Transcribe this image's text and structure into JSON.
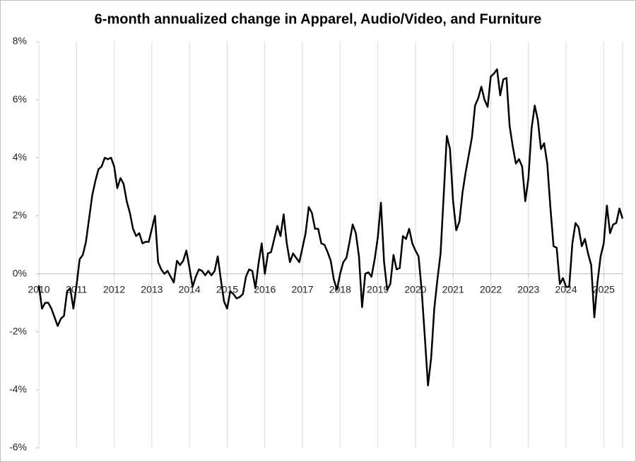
{
  "chart_data": {
    "type": "line",
    "title": "6-month annualized change in Apparel, Audio/Video, and Furniture",
    "color": "#000000",
    "grid": true,
    "xlim": [
      2010,
      2025.5
    ],
    "xticks": [
      2010,
      2011,
      2012,
      2013,
      2014,
      2015,
      2016,
      2017,
      2018,
      2019,
      2020,
      2021,
      2022,
      2023,
      2024,
      2025
    ],
    "ylim": [
      -6,
      8
    ],
    "yticks": [
      {
        "value": -6,
        "label": "-6%"
      },
      {
        "value": -4,
        "label": "-4%"
      },
      {
        "value": -2,
        "label": "-2%"
      },
      {
        "value": 0,
        "label": "0%"
      },
      {
        "value": 2,
        "label": "2%"
      },
      {
        "value": 4,
        "label": "4%"
      },
      {
        "value": 6,
        "label": "6%"
      },
      {
        "value": 8,
        "label": "8%"
      }
    ],
    "x": [
      2010,
      2010.083,
      2010.167,
      2010.25,
      2010.333,
      2010.417,
      2010.5,
      2010.583,
      2010.667,
      2010.75,
      2010.833,
      2010.917,
      2011,
      2011.083,
      2011.167,
      2011.25,
      2011.333,
      2011.417,
      2011.5,
      2011.583,
      2011.667,
      2011.75,
      2011.833,
      2011.917,
      2012,
      2012.083,
      2012.167,
      2012.25,
      2012.333,
      2012.417,
      2012.5,
      2012.583,
      2012.667,
      2012.75,
      2012.833,
      2012.917,
      2013,
      2013.083,
      2013.167,
      2013.25,
      2013.333,
      2013.417,
      2013.5,
      2013.583,
      2013.667,
      2013.75,
      2013.833,
      2013.917,
      2014,
      2014.083,
      2014.167,
      2014.25,
      2014.333,
      2014.417,
      2014.5,
      2014.583,
      2014.667,
      2014.75,
      2014.833,
      2014.917,
      2015,
      2015.083,
      2015.167,
      2015.25,
      2015.333,
      2015.417,
      2015.5,
      2015.583,
      2015.667,
      2015.75,
      2015.833,
      2015.917,
      2016,
      2016.083,
      2016.167,
      2016.25,
      2016.333,
      2016.417,
      2016.5,
      2016.583,
      2016.667,
      2016.75,
      2016.833,
      2016.917,
      2017,
      2017.083,
      2017.167,
      2017.25,
      2017.333,
      2017.417,
      2017.5,
      2017.583,
      2017.667,
      2017.75,
      2017.833,
      2017.917,
      2018,
      2018.083,
      2018.167,
      2018.25,
      2018.333,
      2018.417,
      2018.5,
      2018.583,
      2018.667,
      2018.75,
      2018.833,
      2018.917,
      2019,
      2019.083,
      2019.167,
      2019.25,
      2019.333,
      2019.417,
      2019.5,
      2019.583,
      2019.667,
      2019.75,
      2019.833,
      2019.917,
      2020,
      2020.083,
      2020.167,
      2020.25,
      2020.333,
      2020.417,
      2020.5,
      2020.583,
      2020.667,
      2020.75,
      2020.833,
      2020.917,
      2021,
      2021.083,
      2021.167,
      2021.25,
      2021.333,
      2021.417,
      2021.5,
      2021.583,
      2021.667,
      2021.75,
      2021.833,
      2021.917,
      2022,
      2022.083,
      2022.167,
      2022.25,
      2022.333,
      2022.417,
      2022.5,
      2022.583,
      2022.667,
      2022.75,
      2022.833,
      2022.917,
      2023,
      2023.083,
      2023.167,
      2023.25,
      2023.333,
      2023.417,
      2023.5,
      2023.583,
      2023.667,
      2023.75,
      2023.833,
      2023.917,
      2024,
      2024.083,
      2024.167,
      2024.25,
      2024.333,
      2024.417,
      2024.5,
      2024.583,
      2024.667,
      2024.75,
      2024.833,
      2024.917,
      2025,
      2025.083,
      2025.167,
      2025.25,
      2025.333,
      2025.417,
      2025.5
    ],
    "values": [
      -0.4,
      -1.2,
      -1.0,
      -1.0,
      -1.2,
      -1.5,
      -1.8,
      -1.55,
      -1.45,
      -0.6,
      -0.5,
      -1.2,
      -0.4,
      0.5,
      0.65,
      1.1,
      1.9,
      2.7,
      3.2,
      3.6,
      3.7,
      4.0,
      3.95,
      4.0,
      3.7,
      2.95,
      3.3,
      3.1,
      2.5,
      2.1,
      1.55,
      1.3,
      1.4,
      1.05,
      1.1,
      1.1,
      1.55,
      2.0,
      0.4,
      0.15,
      0.0,
      0.1,
      -0.1,
      -0.3,
      0.45,
      0.3,
      0.45,
      0.8,
      0.2,
      -0.45,
      -0.1,
      0.15,
      0.1,
      -0.05,
      0.1,
      -0.05,
      0.1,
      0.6,
      -0.2,
      -0.95,
      -1.2,
      -0.6,
      -0.7,
      -0.85,
      -0.8,
      -0.7,
      -0.1,
      0.15,
      0.1,
      -0.5,
      0.35,
      1.05,
      0.0,
      0.7,
      0.75,
      1.2,
      1.65,
      1.3,
      2.05,
      1.05,
      0.4,
      0.7,
      0.55,
      0.4,
      0.9,
      1.4,
      2.3,
      2.1,
      1.55,
      1.55,
      1.05,
      1.0,
      0.75,
      0.45,
      -0.2,
      -0.55,
      0.0,
      0.4,
      0.55,
      1.1,
      1.7,
      1.4,
      0.6,
      -1.15,
      0.0,
      0.05,
      -0.1,
      0.5,
      1.25,
      2.45,
      0.4,
      -0.55,
      -0.35,
      0.65,
      0.15,
      0.2,
      1.3,
      1.2,
      1.55,
      1.05,
      0.8,
      0.6,
      -0.6,
      -2.2,
      -3.85,
      -2.9,
      -1.2,
      -0.2,
      0.7,
      2.7,
      4.75,
      4.3,
      2.5,
      1.5,
      1.8,
      2.8,
      3.5,
      4.1,
      4.7,
      5.8,
      6.05,
      6.45,
      6.0,
      5.75,
      6.8,
      6.9,
      7.05,
      6.15,
      6.7,
      6.75,
      5.1,
      4.4,
      3.8,
      3.95,
      3.7,
      2.5,
      3.3,
      5.0,
      5.8,
      5.3,
      4.3,
      4.5,
      3.8,
      2.3,
      0.95,
      0.9,
      -0.35,
      -0.15,
      -0.45,
      -0.45,
      1.05,
      1.75,
      1.6,
      0.95,
      1.2,
      0.7,
      0.3,
      -1.5,
      -0.3,
      0.6,
      1.05,
      2.35,
      1.4,
      1.7,
      1.75,
      2.25,
      1.9
    ]
  }
}
